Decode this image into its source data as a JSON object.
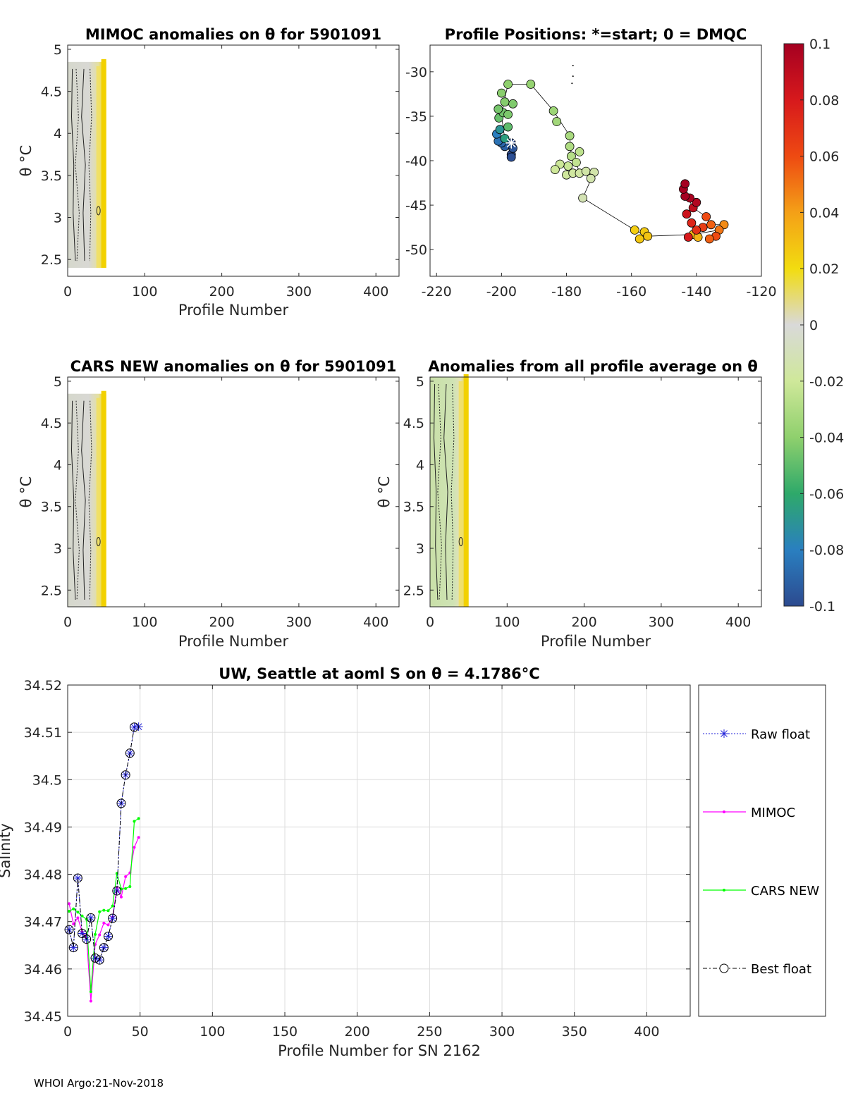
{
  "footer": "WHOI Argo:21-Nov-2018",
  "theta_symbol": "θ",
  "chart_data": [
    {
      "id": "mimoc",
      "type": "heatmap",
      "title": "MIMOC anomalies on θ  for 5901091",
      "xlabel": "Profile Number",
      "ylabel": "θ °C",
      "xlim": [
        0,
        430
      ],
      "ylim": [
        2.3,
        5.05
      ],
      "xticks": [
        0,
        100,
        200,
        300,
        400
      ],
      "yticks": [
        2.5,
        3,
        3.5,
        4,
        4.5,
        5
      ],
      "ytick_labels": [
        "2.5",
        "3",
        "3.5",
        "4",
        "4.5",
        "5"
      ],
      "data_extent": {
        "x": [
          0,
          50
        ],
        "theta": [
          2.4,
          4.85
        ]
      }
    },
    {
      "id": "positions",
      "type": "scatter",
      "title": "Profile Positions: *=start; 0 = DMQC",
      "xlim": [
        -222,
        -120
      ],
      "ylim": [
        -53,
        -27
      ],
      "xticks": [
        -220,
        -200,
        -180,
        -160,
        -140,
        -120
      ],
      "yticks": [
        -30,
        -35,
        -40,
        -45,
        -50
      ],
      "ytick_labels": [
        "-30",
        "-35",
        "-40",
        "-45",
        "-50"
      ],
      "start": [
        -197,
        -38
      ],
      "points": [
        {
          "lon": -197,
          "lat": -38,
          "c": -0.1
        },
        {
          "lon": -197,
          "lat": -39.3,
          "c": -0.1
        },
        {
          "lon": -197,
          "lat": -39.6,
          "c": -0.098
        },
        {
          "lon": -196.5,
          "lat": -38.6,
          "c": -0.096
        },
        {
          "lon": -198,
          "lat": -38.2,
          "c": -0.094
        },
        {
          "lon": -199,
          "lat": -38.4,
          "c": -0.092
        },
        {
          "lon": -200,
          "lat": -38,
          "c": -0.09
        },
        {
          "lon": -201,
          "lat": -37.8,
          "c": -0.085
        },
        {
          "lon": -201.5,
          "lat": -37,
          "c": -0.08
        },
        {
          "lon": -200.5,
          "lat": -36.5,
          "c": -0.07
        },
        {
          "lon": -199,
          "lat": -37.5,
          "c": -0.065
        },
        {
          "lon": -198,
          "lat": -36.2,
          "c": -0.05
        },
        {
          "lon": -200.8,
          "lat": -35.2,
          "c": -0.048
        },
        {
          "lon": -199.5,
          "lat": -34.6,
          "c": -0.046
        },
        {
          "lon": -201,
          "lat": -34.2,
          "c": -0.045
        },
        {
          "lon": -198,
          "lat": -34.8,
          "c": -0.044
        },
        {
          "lon": -196.5,
          "lat": -33.6,
          "c": -0.043
        },
        {
          "lon": -199,
          "lat": -33.4,
          "c": -0.042
        },
        {
          "lon": -200,
          "lat": -32.4,
          "c": -0.041
        },
        {
          "lon": -198,
          "lat": -31.4,
          "c": -0.04
        },
        {
          "lon": -191,
          "lat": -31.4,
          "c": -0.038
        },
        {
          "lon": -184,
          "lat": -34.4,
          "c": -0.036
        },
        {
          "lon": -183,
          "lat": -35.6,
          "c": -0.034
        },
        {
          "lon": -179,
          "lat": -37.2,
          "c": -0.032
        },
        {
          "lon": -179,
          "lat": -38.4,
          "c": -0.03
        },
        {
          "lon": -178.5,
          "lat": -39.5,
          "c": -0.028
        },
        {
          "lon": -176,
          "lat": -39,
          "c": -0.026
        },
        {
          "lon": -177,
          "lat": -40.2,
          "c": -0.024
        },
        {
          "lon": -179.5,
          "lat": -40.6,
          "c": -0.022
        },
        {
          "lon": -182,
          "lat": -40.4,
          "c": -0.021
        },
        {
          "lon": -183.5,
          "lat": -41,
          "c": -0.02
        },
        {
          "lon": -180,
          "lat": -41.6,
          "c": -0.019
        },
        {
          "lon": -178,
          "lat": -41.4,
          "c": -0.018
        },
        {
          "lon": -176,
          "lat": -41.4,
          "c": -0.017
        },
        {
          "lon": -174,
          "lat": -41.2,
          "c": -0.016
        },
        {
          "lon": -171.5,
          "lat": -41.3,
          "c": -0.015
        },
        {
          "lon": -172.5,
          "lat": -42,
          "c": -0.014
        },
        {
          "lon": -175,
          "lat": -44.2,
          "c": -0.012
        },
        {
          "lon": -159,
          "lat": -47.8,
          "c": 0.025
        },
        {
          "lon": -156,
          "lat": -48,
          "c": 0.026
        },
        {
          "lon": -157.5,
          "lat": -48.8,
          "c": 0.027
        },
        {
          "lon": -155,
          "lat": -48.5,
          "c": 0.028
        },
        {
          "lon": -141,
          "lat": -48.3,
          "c": 0.032
        },
        {
          "lon": -139.5,
          "lat": -48.6,
          "c": 0.034
        },
        {
          "lon": -131.5,
          "lat": -47.2,
          "c": 0.045
        },
        {
          "lon": -133,
          "lat": -47.8,
          "c": 0.05
        },
        {
          "lon": -135.5,
          "lat": -47.2,
          "c": 0.055
        },
        {
          "lon": -137,
          "lat": -46.3,
          "c": 0.06
        },
        {
          "lon": -138,
          "lat": -47.5,
          "c": 0.065
        },
        {
          "lon": -140,
          "lat": -47.8,
          "c": 0.07
        },
        {
          "lon": -141.5,
          "lat": -47,
          "c": 0.075
        },
        {
          "lon": -142.5,
          "lat": -48.6,
          "c": 0.08
        },
        {
          "lon": -134,
          "lat": -48.5,
          "c": 0.06
        },
        {
          "lon": -136,
          "lat": -48.8,
          "c": 0.055
        },
        {
          "lon": -143,
          "lat": -46,
          "c": 0.085
        },
        {
          "lon": -141,
          "lat": -45.3,
          "c": 0.09
        },
        {
          "lon": -140,
          "lat": -44.7,
          "c": 0.095
        },
        {
          "lon": -142,
          "lat": -44.2,
          "c": 0.098
        },
        {
          "lon": -143.5,
          "lat": -44,
          "c": 0.1
        },
        {
          "lon": -144,
          "lat": -43.2,
          "c": 0.1
        },
        {
          "lon": -143.5,
          "lat": -42.6,
          "c": 0.1
        }
      ],
      "track": [
        [
          -197,
          -38
        ],
        [
          -199,
          -37.5
        ],
        [
          -200,
          -35
        ],
        [
          -199,
          -33
        ],
        [
          -198,
          -31.4
        ],
        [
          -191,
          -31.4
        ],
        [
          -184,
          -34.4
        ],
        [
          -179,
          -37.2
        ],
        [
          -178.5,
          -39.5
        ],
        [
          -177,
          -40.2
        ],
        [
          -176,
          -41.4
        ],
        [
          -174,
          -41.2
        ],
        [
          -171.5,
          -41.3
        ],
        [
          -175,
          -44.2
        ],
        [
          -159,
          -47.8
        ],
        [
          -155,
          -48.5
        ],
        [
          -141,
          -48.3
        ],
        [
          -133,
          -47.8
        ],
        [
          -131.5,
          -47.2
        ],
        [
          -135.5,
          -47.2
        ],
        [
          -137,
          -46.3
        ],
        [
          -141,
          -45.3
        ],
        [
          -144,
          -43.2
        ]
      ],
      "dmqc_markers": [
        [
          -178,
          -29.3
        ],
        [
          -178,
          -30.5
        ],
        [
          -178.3,
          -31.3
        ]
      ]
    },
    {
      "id": "cars",
      "type": "heatmap",
      "title": "CARS NEW anomalies on θ for 5901091",
      "xlabel": "Profile Number",
      "ylabel": "θ °C",
      "xlim": [
        0,
        430
      ],
      "ylim": [
        2.3,
        5.05
      ],
      "xticks": [
        0,
        100,
        200,
        300,
        400
      ],
      "yticks": [
        2.5,
        3,
        3.5,
        4,
        4.5,
        5
      ],
      "ytick_labels": [
        "2.5",
        "3",
        "3.5",
        "4",
        "4.5",
        "5"
      ],
      "data_extent": {
        "x": [
          0,
          50
        ],
        "theta": [
          2.3,
          4.85
        ]
      }
    },
    {
      "id": "allavg",
      "type": "heatmap",
      "title": "Anomalies from all profile average on θ",
      "xlabel": "Profile Number",
      "ylabel": "θ °C",
      "xlim": [
        0,
        430
      ],
      "ylim": [
        2.3,
        5.05
      ],
      "xticks": [
        0,
        100,
        200,
        300,
        400
      ],
      "yticks": [
        2.5,
        3,
        3.5,
        4,
        4.5,
        5
      ],
      "ytick_labels": [
        "2.5",
        "3",
        "3.5",
        "4",
        "4.5",
        "5"
      ],
      "data_extent": {
        "x": [
          0,
          50
        ],
        "theta": [
          2.3,
          5.05
        ]
      }
    },
    {
      "id": "colorbar",
      "type": "colorbar",
      "range": [
        -0.1,
        0.1
      ],
      "ticks": [
        0.1,
        0.08,
        0.06,
        0.04,
        0.02,
        0,
        -0.02,
        -0.04,
        -0.06,
        -0.08,
        -0.1
      ],
      "tick_labels": [
        "0.1",
        "0.08",
        "0.06",
        "0.04",
        "0.02",
        "0",
        "-0.02",
        "-0.04",
        "-0.06",
        "-0.08",
        "-0.1"
      ]
    },
    {
      "id": "salinity",
      "type": "line",
      "title": "UW, Seattle at aoml S on θ = 4.1786°C",
      "xlabel": "Profile Number for SN 2162",
      "ylabel": "Salinity",
      "xlim": [
        0,
        430
      ],
      "ylim": [
        34.45,
        34.52
      ],
      "grid": true,
      "legend_position": "right",
      "xticks": [
        0,
        50,
        100,
        150,
        200,
        250,
        300,
        350,
        400
      ],
      "yticks": [
        34.45,
        34.46,
        34.47,
        34.48,
        34.49,
        34.5,
        34.51,
        34.52
      ],
      "ytick_labels": [
        "34.45",
        "34.46",
        "34.47",
        "34.48",
        "34.49",
        "34.5",
        "34.51",
        "34.52"
      ],
      "x": [
        1,
        4,
        7,
        10,
        13,
        16,
        19,
        22,
        25,
        28,
        31,
        34,
        37,
        40,
        43,
        46,
        49
      ],
      "series": [
        {
          "name": "Raw float",
          "color": "#1f1fd8",
          "values": [
            34.4683,
            34.4645,
            34.4792,
            34.4675,
            34.4663,
            34.4708,
            34.4623,
            34.4619,
            34.4645,
            34.4669,
            34.4707,
            34.4765,
            34.495,
            34.501,
            34.5056,
            34.5111,
            34.5112
          ]
        },
        {
          "name": "MIMOC",
          "color": "#ff00ff",
          "values": [
            34.4738,
            34.4695,
            34.4708,
            34.4678,
            34.4667,
            34.4532,
            34.4652,
            34.4672,
            34.4697,
            34.4693,
            34.4709,
            34.4772,
            34.4752,
            34.4795,
            34.4803,
            34.4857,
            34.4878
          ]
        },
        {
          "name": "CARS NEW",
          "color": "#00ff00",
          "values": [
            34.4722,
            34.4727,
            34.472,
            34.4712,
            34.4705,
            34.4552,
            34.4673,
            34.4721,
            34.4724,
            34.4723,
            34.4733,
            34.4802,
            34.4769,
            34.477,
            34.4774,
            34.4912,
            34.4918
          ]
        },
        {
          "name": "Best float",
          "color": "#000000",
          "values": [
            34.4683,
            34.4645,
            34.4792,
            34.4675,
            34.4663,
            34.4708,
            34.4623,
            34.4619,
            34.4645,
            34.4669,
            34.4707,
            34.4765,
            34.495,
            34.501,
            34.5056,
            34.5111,
            null
          ]
        }
      ]
    }
  ]
}
